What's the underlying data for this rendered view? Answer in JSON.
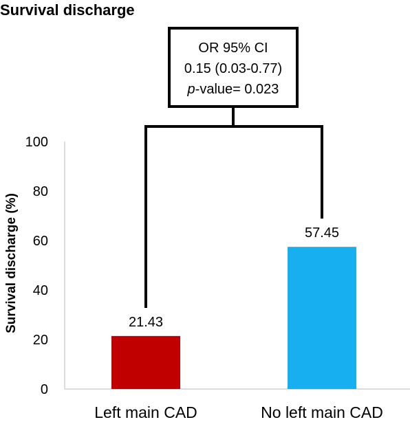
{
  "chart_data": {
    "type": "bar",
    "title": "Survival discharge",
    "ylabel": "Survival discharge (%)",
    "xlabel": "",
    "categories": [
      "Left main CAD",
      "No left main CAD"
    ],
    "values": [
      21.43,
      57.45
    ],
    "value_labels": [
      "21.43",
      "57.45"
    ],
    "colors": [
      "#C00000",
      "#18AFF0"
    ],
    "ylim": [
      0,
      100
    ],
    "yticks": [
      0,
      20,
      40,
      60,
      80,
      100
    ],
    "ytick_labels": [
      "0",
      "20",
      "40",
      "60",
      "80",
      "100"
    ],
    "grid": false,
    "legend": "none",
    "annotation": {
      "line1": "OR 95% CI",
      "line2": "0.15 (0.03-0.77)",
      "line3_italic": "p",
      "line3_rest": "-value= 0.023"
    }
  }
}
